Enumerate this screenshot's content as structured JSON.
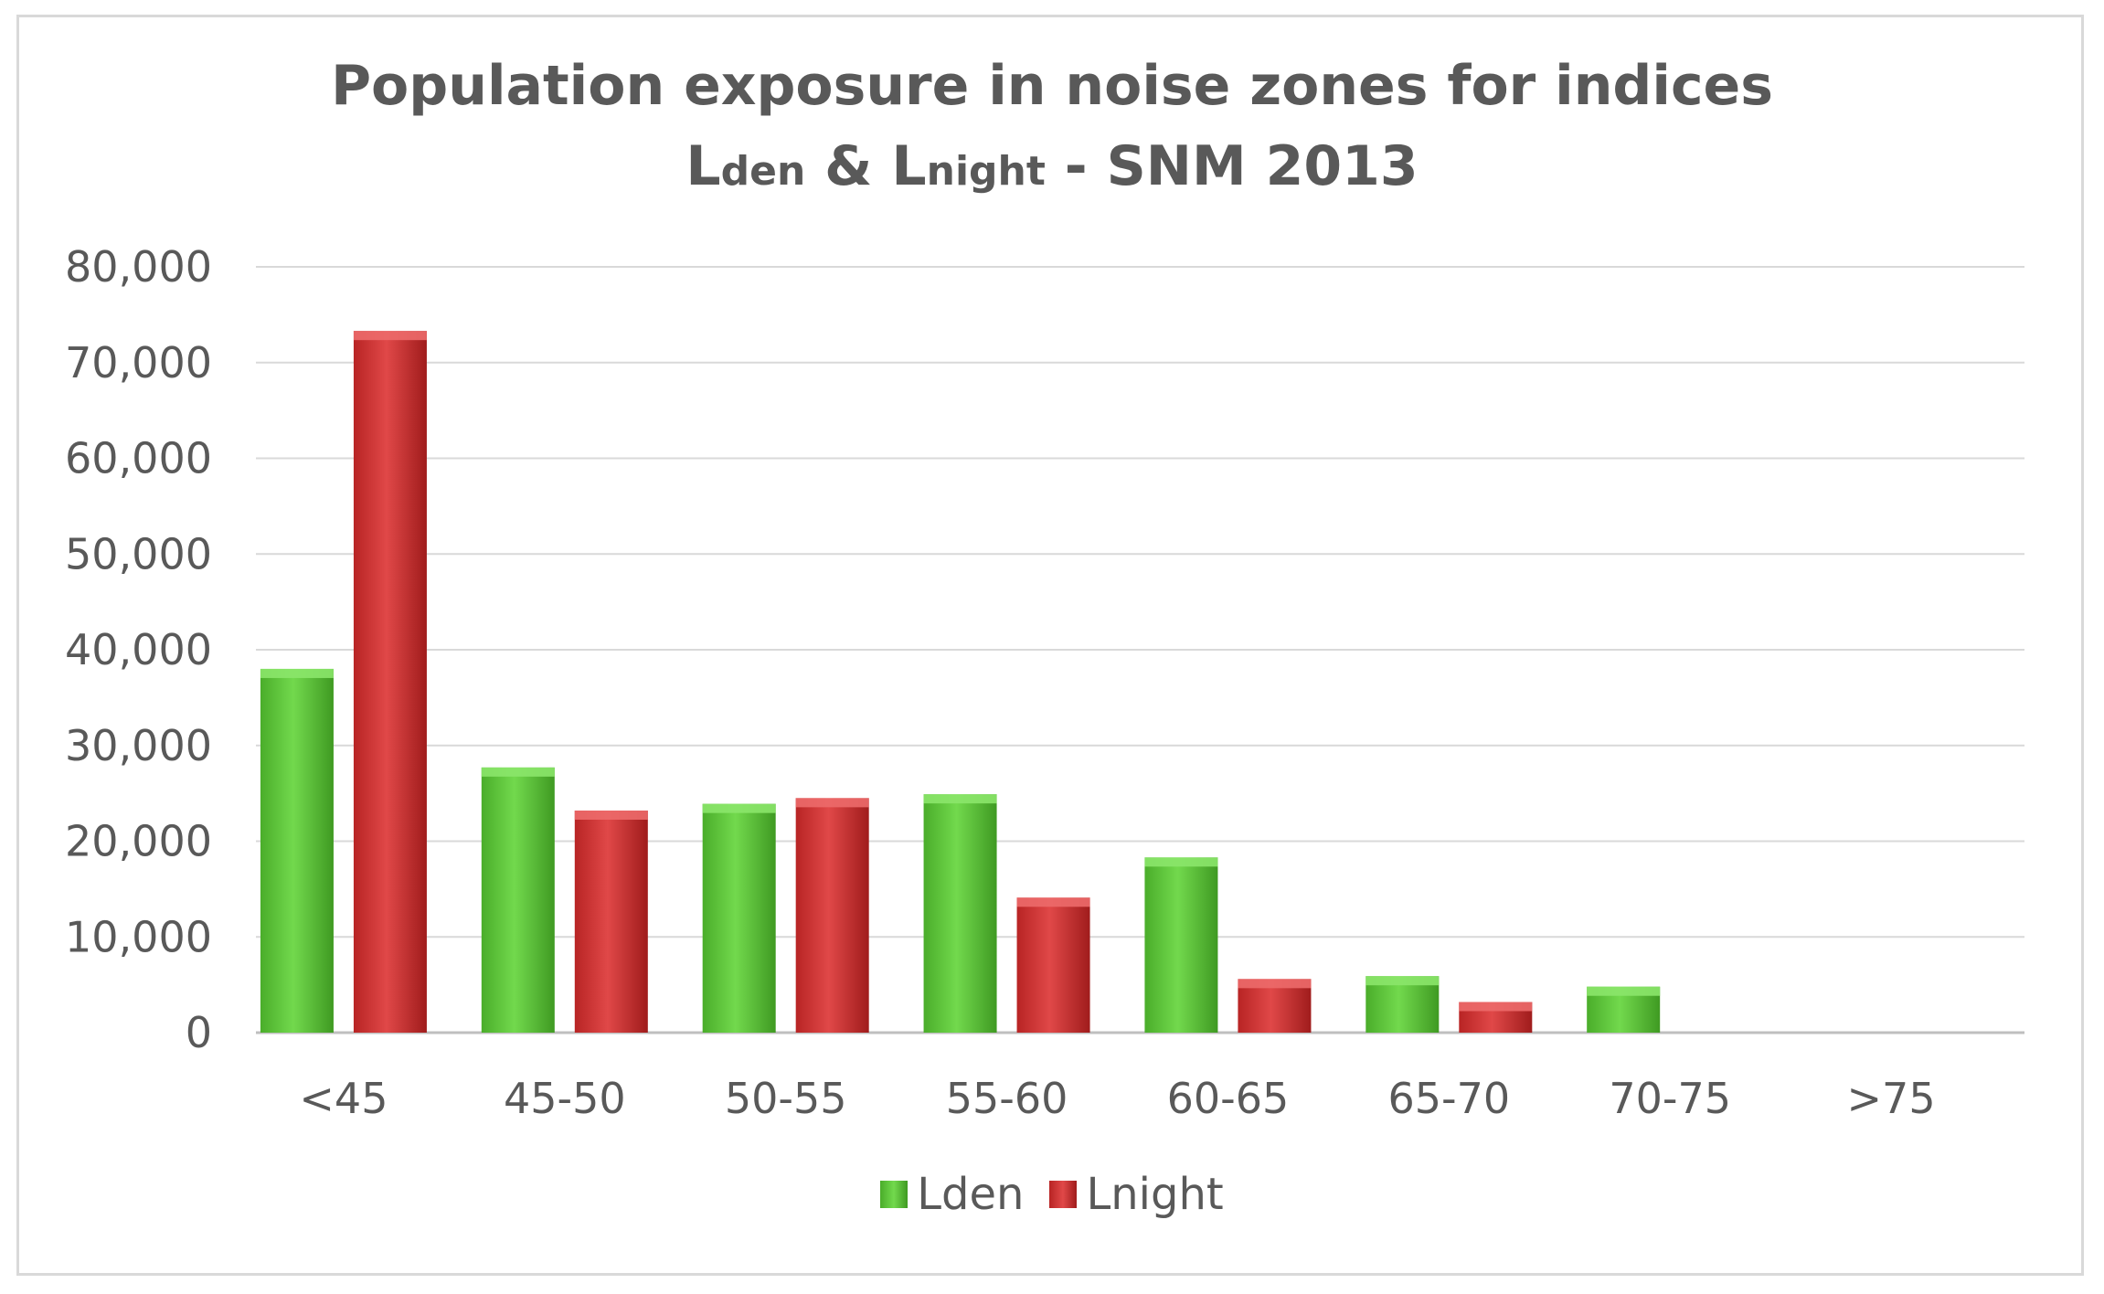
{
  "chart_data": {
    "type": "bar",
    "title_line1": "Population exposure in noise zones for indices",
    "title_l1": "L",
    "title_sub1": "den",
    "title_amp": " & ",
    "title_l2": "L",
    "title_sub2": "night",
    "title_tail": " - SNM 2013",
    "categories": [
      "<45",
      "45-50",
      "50-55",
      "55-60",
      "60-65",
      "65-70",
      "70-75",
      ">75"
    ],
    "series": [
      {
        "name": "Lden",
        "color": "#5cc83a",
        "values": [
          38000,
          27700,
          23900,
          24900,
          18300,
          5900,
          4800,
          0
        ]
      },
      {
        "name": "Lnight",
        "color": "#d03434",
        "values": [
          73300,
          23200,
          24500,
          14100,
          5600,
          3200,
          0,
          0
        ]
      }
    ],
    "ylim": [
      0,
      80000
    ],
    "yticks": [
      "0",
      "10,000",
      "20,000",
      "30,000",
      "40,000",
      "50,000",
      "60,000",
      "70,000",
      "80,000"
    ],
    "grid": true,
    "legend_position": "bottom"
  }
}
